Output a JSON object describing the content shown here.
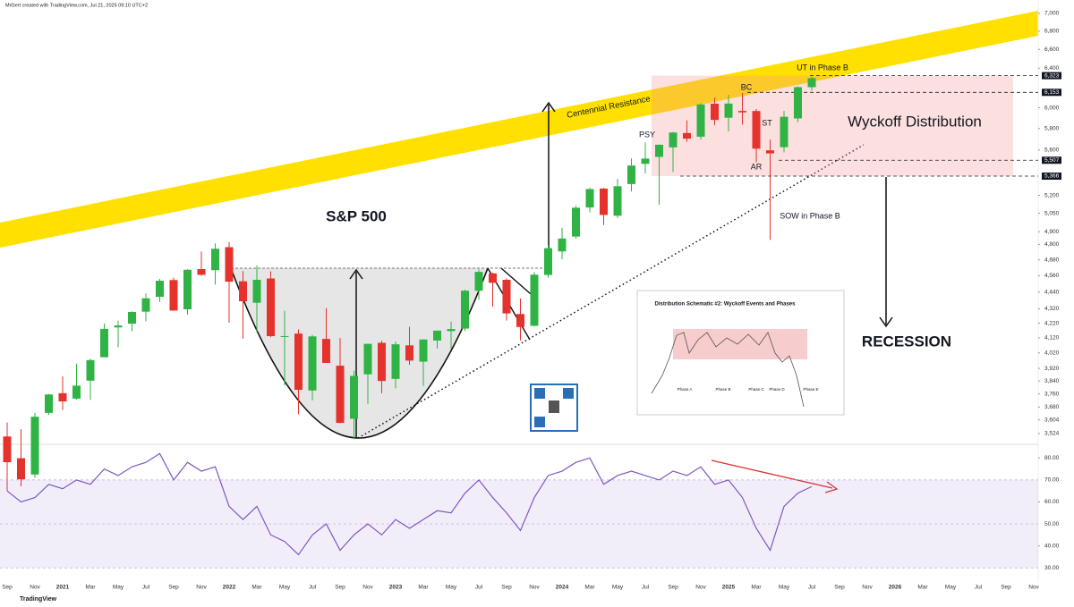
{
  "chart_data": {
    "type": "candlestick",
    "source": "MrGert created with TradingView.com, Jul 21, 2025 09:10 UTC+2",
    "title": "S&P 500",
    "logo": "TradingView",
    "up_color": "#2fb344",
    "down_color": "#e5322d",
    "log_scale": true,
    "grid": false,
    "categories": [
      "Sep",
      null,
      "Nov",
      null,
      "2021",
      null,
      "Mar",
      null,
      "May",
      null,
      "Jul",
      null,
      "Sep",
      null,
      "Nov",
      null,
      "2022",
      null,
      "Mar",
      null,
      "May",
      null,
      "Jul",
      null,
      "Sep",
      null,
      "Nov",
      null,
      "2023",
      null,
      "Mar",
      null,
      "May",
      null,
      "Jul",
      null,
      "Sep",
      null,
      "Nov",
      null,
      "2024",
      null,
      "Mar",
      null,
      "May",
      null,
      "Jul",
      null,
      "Sep",
      null,
      "Nov",
      null,
      "2025",
      null,
      "Mar",
      null,
      "May",
      null,
      "Jul",
      null,
      "Sep",
      null,
      "Nov",
      null,
      "2026",
      null,
      "Mar",
      null,
      "May",
      null,
      "Jul",
      null,
      "Sep",
      null,
      "Nov"
    ],
    "open": [
      3507,
      3385,
      3296,
      3645,
      3764,
      3731,
      3842,
      3992,
      4191,
      4217,
      4300,
      4406,
      4528,
      4317,
      4610,
      4602,
      4778,
      4519,
      4363,
      4540,
      4130,
      4149,
      3781,
      4113,
      3937,
      3610,
      3882,
      4087,
      3853,
      4070,
      3963,
      4102,
      4166,
      4183,
      4450,
      4578,
      4530,
      4284,
      4202,
      4566,
      4745,
      4862,
      5098,
      5258,
      5030,
      5297,
      5475,
      5537,
      5624,
      5757,
      5723,
      6040,
      5903,
      5969,
      5968,
      5597,
      5626,
      5896,
      6205,
      null,
      null,
      null,
      null,
      null,
      null,
      null,
      null,
      null,
      null,
      null,
      null,
      null,
      null,
      null,
      null
    ],
    "high": [
      3588,
      3549,
      3645,
      3760,
      3870,
      3950,
      3983,
      4218,
      4238,
      4302,
      4429,
      4537,
      4546,
      4608,
      4744,
      4808,
      4818,
      4595,
      4637,
      4593,
      4307,
      4178,
      4140,
      4325,
      4119,
      3905,
      4080,
      4101,
      4095,
      4195,
      4111,
      4170,
      4231,
      4458,
      4607,
      4584,
      4541,
      4394,
      4587,
      4794,
      4932,
      5112,
      5265,
      5264,
      5342,
      5524,
      5670,
      5651,
      5767,
      5878,
      6044,
      6100,
      6128,
      6147,
      5987,
      5695,
      5969,
      6216,
      6315,
      null,
      null,
      null,
      null,
      null,
      null,
      null,
      null,
      null,
      null,
      null,
      null,
      null,
      null,
      null,
      null
    ],
    "low": [
      3209,
      3233,
      3279,
      3633,
      3662,
      3725,
      3723,
      3992,
      4057,
      4165,
      4233,
      4368,
      4306,
      4279,
      4560,
      4495,
      4223,
      4115,
      4157,
      4124,
      3811,
      3637,
      3721,
      3955,
      3584,
      3492,
      3699,
      3764,
      3795,
      3943,
      3809,
      4049,
      4048,
      4166,
      4385,
      4336,
      4238,
      4104,
      4197,
      4546,
      4683,
      4845,
      5057,
      4954,
      5012,
      5234,
      5390,
      5120,
      5403,
      5675,
      5696,
      5832,
      5773,
      5837,
      5489,
      4835,
      5578,
      5862,
      6170,
      null,
      null,
      null,
      null,
      null,
      null,
      null,
      null,
      null,
      null,
      null,
      null,
      null,
      null,
      null,
      null
    ],
    "close": [
      3363,
      3270,
      3622,
      3756,
      3714,
      3811,
      3973,
      4181,
      4204,
      4298,
      4395,
      4523,
      4308,
      4605,
      4567,
      4766,
      4516,
      4374,
      4530,
      4132,
      4132,
      3785,
      4130,
      3955,
      3586,
      3872,
      4080,
      3840,
      4077,
      3970,
      4109,
      4169,
      4180,
      4450,
      4589,
      4508,
      4288,
      4194,
      4568,
      4770,
      4846,
      5096,
      5254,
      5036,
      5278,
      5460,
      5522,
      5648,
      5762,
      5705,
      6032,
      5882,
      6041,
      5955,
      5612,
      5569,
      5912,
      6205,
      6297,
      null,
      null,
      null,
      null,
      null,
      null,
      null,
      null,
      null,
      null,
      null,
      null,
      null,
      null,
      null,
      null
    ],
    "ylim": [
      3488,
      7051
    ],
    "yticks": [
      {
        "value": 3524,
        "label": "3,524"
      },
      {
        "value": 3604,
        "label": "3,604"
      },
      {
        "value": 3680,
        "label": "3,680"
      },
      {
        "value": 3760,
        "label": "3,760"
      },
      {
        "value": 3840,
        "label": "3,840"
      },
      {
        "value": 3920,
        "label": "3,920"
      },
      {
        "value": 4020,
        "label": "4,020"
      },
      {
        "value": 4120,
        "label": "4,120"
      },
      {
        "value": 4220,
        "label": "4,220"
      },
      {
        "value": 4320,
        "label": "4,320"
      },
      {
        "value": 4440,
        "label": "4,440"
      },
      {
        "value": 4560,
        "label": "4,560"
      },
      {
        "value": 4680,
        "label": "4,680"
      },
      {
        "value": 4800,
        "label": "4,800"
      },
      {
        "value": 4900,
        "label": "4,900"
      },
      {
        "value": 5050,
        "label": "5,050"
      },
      {
        "value": 5200,
        "label": "5,200"
      },
      {
        "value": 5600,
        "label": "5,600"
      },
      {
        "value": 5800,
        "label": "5,800"
      },
      {
        "value": 6000,
        "label": "6,000"
      },
      {
        "value": 6400,
        "label": "6,400"
      },
      {
        "value": 6600,
        "label": "6,600"
      },
      {
        "value": 6800,
        "label": "6,800"
      },
      {
        "value": 7000,
        "label": "7,000"
      }
    ],
    "levels": [
      {
        "value": 6323,
        "label": "6,323"
      },
      {
        "value": 6153,
        "label": "6,153"
      },
      {
        "value": 5507,
        "label": "5,507"
      },
      {
        "value": 5366,
        "label": "5,366"
      }
    ],
    "annotations": [
      "Centennial Resistance",
      "PSY",
      "BC",
      "ST",
      "AR",
      "UT in Phase B",
      "SOW in Phase B",
      "Wyckoff Distribution",
      "RECESSION"
    ],
    "inset": {
      "title": "Distribution Schematic #2: Wyckoff Events and Phases",
      "phases": [
        "Phase A",
        "Phase B",
        "Phase C",
        "Phase D",
        "Phase E"
      ]
    },
    "indicator": {
      "type": "line",
      "color": "#7e57c2",
      "values": [
        65,
        60,
        62,
        68,
        66,
        70,
        68,
        75,
        72,
        76,
        78,
        82,
        70,
        78,
        74,
        76,
        58,
        52,
        58,
        45,
        42,
        36,
        45,
        50,
        38,
        45,
        50,
        45,
        52,
        48,
        52,
        56,
        55,
        64,
        70,
        62,
        55,
        47,
        62,
        72,
        74,
        78,
        80,
        68,
        72,
        74,
        72,
        70,
        74,
        72,
        76,
        68,
        70,
        62,
        48,
        38,
        58,
        64,
        67,
        null,
        null,
        null,
        null,
        null,
        null,
        null,
        null,
        null,
        null,
        null,
        null,
        null,
        null,
        null,
        null
      ],
      "ylim": [
        24,
        85
      ],
      "yticks": [
        {
          "value": 30,
          "label": "30.00"
        },
        {
          "value": 40,
          "label": "40.00"
        },
        {
          "value": 50,
          "label": "50.00"
        },
        {
          "value": 60,
          "label": "60.00"
        },
        {
          "value": 70,
          "label": "70.00"
        },
        {
          "value": 80,
          "label": "80.00"
        }
      ]
    }
  }
}
